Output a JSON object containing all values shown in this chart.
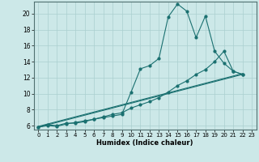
{
  "xlabel": "Humidex (Indice chaleur)",
  "bg_color": "#cce8e8",
  "line_color": "#1a7070",
  "grid_color": "#aacfcf",
  "xlim": [
    -0.5,
    23.5
  ],
  "ylim": [
    5.5,
    21.5
  ],
  "xticks": [
    0,
    1,
    2,
    3,
    4,
    5,
    6,
    7,
    8,
    9,
    10,
    11,
    12,
    13,
    14,
    15,
    16,
    17,
    18,
    19,
    20,
    21,
    22,
    23
  ],
  "yticks": [
    6,
    8,
    10,
    12,
    14,
    16,
    18,
    20
  ],
  "line1_x": [
    0,
    1,
    2,
    3,
    4,
    5,
    6,
    7,
    8,
    9,
    10,
    11,
    12,
    13,
    14,
    15,
    16,
    17,
    18,
    19,
    20,
    21,
    22
  ],
  "line1_y": [
    5.8,
    6.1,
    6.0,
    6.3,
    6.3,
    6.5,
    6.8,
    7.0,
    7.2,
    7.4,
    10.2,
    13.1,
    13.5,
    14.4,
    19.6,
    21.2,
    20.3,
    17.0,
    19.7,
    15.3,
    13.8,
    12.8,
    12.4
  ],
  "line2_x": [
    0,
    1,
    2,
    3,
    4,
    5,
    6,
    7,
    8,
    9,
    10,
    11,
    12,
    13,
    14,
    15,
    16,
    17,
    18,
    19,
    20,
    21,
    22
  ],
  "line2_y": [
    5.8,
    6.0,
    5.9,
    6.2,
    6.4,
    6.6,
    6.8,
    7.1,
    7.4,
    7.6,
    8.2,
    8.6,
    9.0,
    9.5,
    10.2,
    11.0,
    11.6,
    12.4,
    13.0,
    14.0,
    15.3,
    12.8,
    12.4
  ],
  "line3_x": [
    0,
    22
  ],
  "line3_y": [
    5.8,
    12.4
  ],
  "line4_x": [
    0,
    22
  ],
  "line4_y": [
    5.9,
    12.5
  ],
  "xlabel_fontsize": 6.0,
  "tick_fontsize": 5.0,
  "ytick_fontsize": 5.5,
  "linewidth": 0.8,
  "markersize": 2.0
}
